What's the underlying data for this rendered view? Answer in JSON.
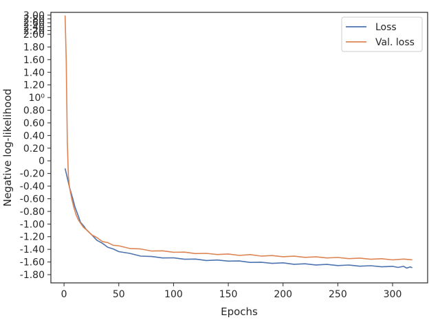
{
  "chart_data": {
    "type": "line",
    "xlabel": "Epochs",
    "ylabel": "Negative log-likelihood",
    "xlim": [
      -12,
      332
    ],
    "x_ticks": [
      {
        "value": 0,
        "label": "0"
      },
      {
        "value": 50,
        "label": "50"
      },
      {
        "value": 100,
        "label": "100"
      },
      {
        "value": 150,
        "label": "150"
      },
      {
        "value": 200,
        "label": "200"
      },
      {
        "value": 250,
        "label": "250"
      },
      {
        "value": 300,
        "label": "300"
      }
    ],
    "ylim": [
      -1.93,
      3.03
    ],
    "y_scale": "symlog-like (linear between -1.8 and 2.0, compressed above 2.0)",
    "y_ticks": [
      {
        "value": -1.8,
        "label": "-1.80"
      },
      {
        "value": -1.6,
        "label": "-1.60"
      },
      {
        "value": -1.4,
        "label": "-1.40"
      },
      {
        "value": -1.2,
        "label": "-1.20"
      },
      {
        "value": -1.0,
        "label": "-1.00"
      },
      {
        "value": -0.8,
        "label": "-0.80"
      },
      {
        "value": -0.6,
        "label": "-0.60"
      },
      {
        "value": -0.4,
        "label": "-0.40"
      },
      {
        "value": -0.2,
        "label": "-0.20"
      },
      {
        "value": 0.0,
        "label": "0"
      },
      {
        "value": 0.2,
        "label": "0.20"
      },
      {
        "value": 0.4,
        "label": "0.40"
      },
      {
        "value": 0.6,
        "label": "0.60"
      },
      {
        "value": 0.8,
        "label": "0.80"
      },
      {
        "value": 1.0,
        "label": "10⁰"
      },
      {
        "value": 1.2,
        "label": "1.20"
      },
      {
        "value": 1.4,
        "label": "1.40"
      },
      {
        "value": 1.6,
        "label": "1.60"
      },
      {
        "value": 1.8,
        "label": "1.80"
      },
      {
        "value": 2.0,
        "label": "2.00"
      },
      {
        "value": 2.2,
        "label": "2.20"
      },
      {
        "value": 2.4,
        "label": "2.40"
      },
      {
        "value": 2.6,
        "label": "2.60"
      },
      {
        "value": 2.8,
        "label": "2.80"
      },
      {
        "value": 3.0,
        "label": "3.00"
      }
    ],
    "legend": {
      "position": "top-right",
      "frame": true
    },
    "grid": false,
    "series": [
      {
        "name": "Loss",
        "color": "#4c72b0",
        "x": [
          1,
          3,
          5,
          8,
          10,
          13,
          15,
          18,
          20,
          25,
          30,
          35,
          40,
          45,
          50,
          60,
          70,
          80,
          90,
          100,
          110,
          120,
          130,
          140,
          150,
          160,
          170,
          180,
          190,
          200,
          210,
          220,
          230,
          240,
          250,
          260,
          270,
          280,
          290,
          300,
          305,
          310,
          313,
          316,
          318
        ],
        "y": [
          -0.12,
          -0.27,
          -0.42,
          -0.6,
          -0.73,
          -0.87,
          -0.97,
          -1.03,
          -1.08,
          -1.17,
          -1.25,
          -1.31,
          -1.36,
          -1.4,
          -1.43,
          -1.47,
          -1.5,
          -1.52,
          -1.53,
          -1.54,
          -1.55,
          -1.56,
          -1.57,
          -1.575,
          -1.58,
          -1.59,
          -1.6,
          -1.61,
          -1.615,
          -1.62,
          -1.63,
          -1.635,
          -1.64,
          -1.645,
          -1.65,
          -1.655,
          -1.66,
          -1.665,
          -1.67,
          -1.675,
          -1.68,
          -1.675,
          -1.69,
          -1.685,
          -1.69
        ]
      },
      {
        "name": "Val. loss",
        "color": "#dd8452",
        "x": [
          1,
          2,
          3,
          4,
          5,
          7,
          9,
          11,
          13,
          15,
          18,
          20,
          25,
          30,
          35,
          40,
          45,
          50,
          60,
          70,
          80,
          90,
          100,
          110,
          120,
          130,
          140,
          150,
          160,
          170,
          180,
          190,
          200,
          210,
          220,
          230,
          240,
          250,
          260,
          270,
          280,
          290,
          300,
          310,
          318
        ],
        "y": [
          2.98,
          1.6,
          0.3,
          -0.25,
          -0.42,
          -0.6,
          -0.74,
          -0.85,
          -0.93,
          -0.99,
          -1.05,
          -1.09,
          -1.16,
          -1.22,
          -1.27,
          -1.3,
          -1.33,
          -1.35,
          -1.38,
          -1.4,
          -1.42,
          -1.43,
          -1.44,
          -1.45,
          -1.46,
          -1.47,
          -1.475,
          -1.48,
          -1.49,
          -1.49,
          -1.5,
          -1.505,
          -1.51,
          -1.515,
          -1.52,
          -1.525,
          -1.53,
          -1.535,
          -1.54,
          -1.545,
          -1.55,
          -1.555,
          -1.56,
          -1.56,
          -1.565
        ]
      }
    ]
  }
}
